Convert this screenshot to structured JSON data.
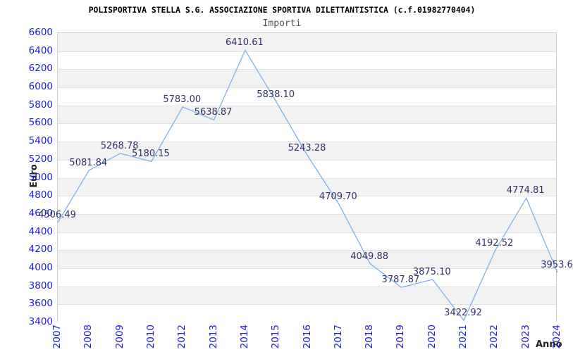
{
  "chart_data": {
    "type": "line",
    "title": "POLISPORTIVA STELLA S.G. ASSOCIAZIONE SPORTIVA DILETTANTISTICA (c.f.01982770404)",
    "subtitle": "Importi",
    "xlabel": "Anno",
    "ylabel": "Euro",
    "categories": [
      "2007",
      "2008",
      "2009",
      "2010",
      "2012",
      "2013",
      "2014",
      "2015",
      "2016",
      "2017",
      "2018",
      "2019",
      "2020",
      "2021",
      "2022",
      "2023",
      "2024"
    ],
    "series": [
      {
        "name": "Importi",
        "values": [
          4506.49,
          5081.84,
          5268.78,
          5180.15,
          5783.0,
          5638.87,
          6410.61,
          5838.1,
          5243.28,
          4709.7,
          4049.88,
          3787.87,
          3875.1,
          3422.92,
          4192.52,
          4774.81,
          3953.6
        ]
      }
    ],
    "point_labels": [
      "4506.49",
      "5081.84",
      "5268.78",
      "5180.15",
      "5783.00",
      "5638.87",
      "6410.61",
      "5838.10",
      "5243.28",
      "4709.70",
      "4049.88",
      "3787.87",
      "3875.10",
      "3422.92",
      "4192.52",
      "4774.81",
      "3953.6"
    ],
    "ylim": [
      3400,
      6600
    ],
    "ytick_step": 200,
    "ytick_labels": [
      "3400",
      "3600",
      "3800",
      "4000",
      "4200",
      "4400",
      "4600",
      "4800",
      "5000",
      "5200",
      "5400",
      "5600",
      "5800",
      "6000",
      "6200",
      "6400",
      "6600"
    ],
    "grid": "horizontal-bands",
    "legend": "none",
    "colors": {
      "line": "#7fb2e8",
      "tick_label": "#1b1be0",
      "point_label": "#32326b",
      "band_gray": "#f2f2f2",
      "gridline": "#e2e2e2",
      "plot_border": "#d0d0d0",
      "title": "#000000",
      "subtitle": "#555555",
      "axis_title": "#222222"
    }
  }
}
